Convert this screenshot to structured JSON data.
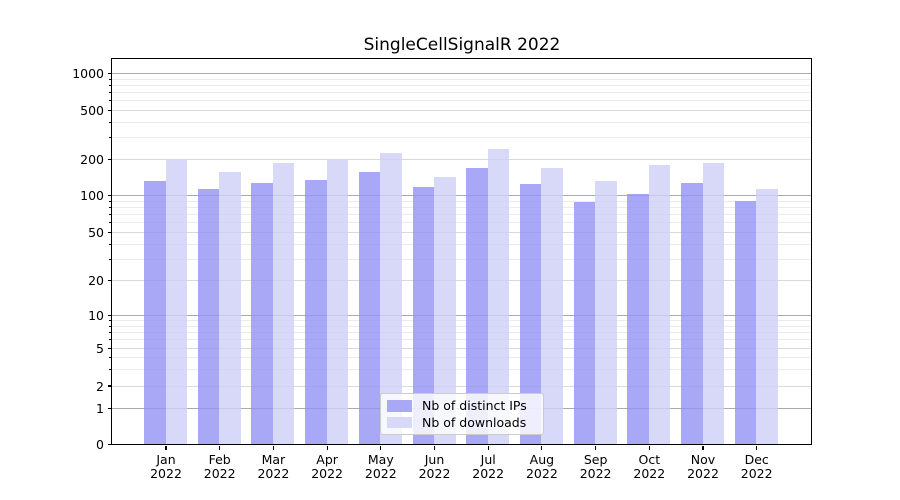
{
  "chart_data": {
    "type": "bar",
    "title": "SingleCellSignalR 2022",
    "x_axis": {
      "categories": [
        "Jan",
        "Feb",
        "Mar",
        "Apr",
        "May",
        "Jun",
        "Jul",
        "Aug",
        "Sep",
        "Oct",
        "Nov",
        "Dec"
      ],
      "year_line": "2022"
    },
    "y_axis": {
      "scale": "symlog",
      "ticks": [
        0,
        1,
        2,
        5,
        10,
        20,
        50,
        100,
        200,
        500,
        1000
      ],
      "lim": [
        0,
        1000
      ],
      "grid": true
    },
    "series": [
      {
        "name": "Nb of distinct IPs",
        "color": "#a8a8f6",
        "values": [
          130,
          112,
          127,
          133,
          155,
          117,
          168,
          123,
          88,
          102,
          127,
          90
        ]
      },
      {
        "name": "Nb of downloads",
        "color": "#d8d8f8",
        "values": [
          195,
          156,
          185,
          194,
          222,
          140,
          240,
          168,
          130,
          177,
          183,
          113
        ]
      }
    ],
    "bar_fill_alpha": 0.8,
    "legend": {
      "position": "lower-center"
    },
    "colors": {
      "grid_major": "#aaaaaa",
      "grid_mid": "#d9d9d9",
      "grid_minor": "#ebebeb",
      "frame": "#000000",
      "background": "#ffffff"
    }
  }
}
